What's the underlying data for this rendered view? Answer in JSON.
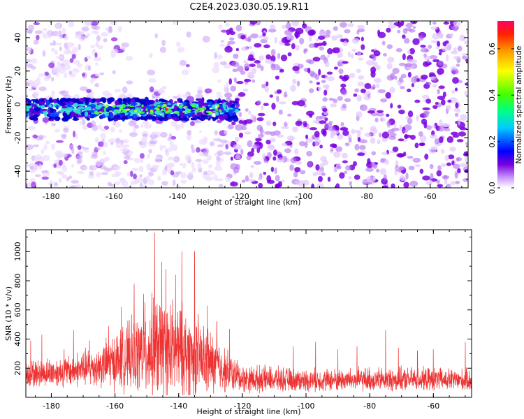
{
  "title": "C2E4.2023.030.05.19.R11",
  "chart_data": [
    {
      "type": "heatmap",
      "xlabel": "Height of straight line (km)",
      "ylabel": "Frequency (Hz)",
      "xlim": [
        -188,
        -48
      ],
      "ylim": [
        -50,
        50
      ],
      "xticks": [
        -180,
        -160,
        -140,
        -120,
        -100,
        -80,
        -60
      ],
      "yticks": [
        -40,
        -20,
        0,
        20,
        40
      ],
      "colorbar": {
        "label": "Normalized spectral amplitude",
        "range": [
          0,
          0.72
        ],
        "ticks": [
          0.0,
          0.2,
          0.4,
          0.6
        ]
      },
      "features": {
        "band_center_hz": -3,
        "band_halfwidth_hz": 6,
        "band_x_range": [
          -188,
          -121
        ],
        "band_peak_amplitude": 0.65,
        "noise_change_x": -124
      }
    },
    {
      "type": "line",
      "xlabel": "Height of straight line (km)",
      "ylabel": "SNR (10 * v/v)",
      "xlim": [
        -188,
        -48
      ],
      "ylim": [
        0,
        1150
      ],
      "xticks": [
        -180,
        -160,
        -140,
        -120,
        -100,
        -80,
        -60
      ],
      "yticks": [
        200,
        400,
        600,
        800,
        1000
      ],
      "series": [
        {
          "color": "#ee3333",
          "envelope": [
            {
              "x": -188,
              "base": 150,
              "spread": 140
            },
            {
              "x": -175,
              "base": 170,
              "spread": 170
            },
            {
              "x": -165,
              "base": 200,
              "spread": 230
            },
            {
              "x": -155,
              "base": 260,
              "spread": 380
            },
            {
              "x": -148,
              "base": 300,
              "spread": 560
            },
            {
              "x": -140,
              "base": 290,
              "spread": 520
            },
            {
              "x": -133,
              "base": 240,
              "spread": 420
            },
            {
              "x": -126,
              "base": 180,
              "spread": 250
            },
            {
              "x": -120,
              "base": 120,
              "spread": 150
            },
            {
              "x": -100,
              "base": 110,
              "spread": 120
            },
            {
              "x": -80,
              "base": 115,
              "spread": 130
            },
            {
              "x": -60,
              "base": 115,
              "spread": 125
            },
            {
              "x": -48,
              "base": 110,
              "spread": 120
            }
          ],
          "peaks": [
            {
              "x": -186.5,
              "y": 390
            },
            {
              "x": -183,
              "y": 430
            },
            {
              "x": -176,
              "y": 330
            },
            {
              "x": -173,
              "y": 460
            },
            {
              "x": -168,
              "y": 390
            },
            {
              "x": -162,
              "y": 490
            },
            {
              "x": -158,
              "y": 620
            },
            {
              "x": -154,
              "y": 780
            },
            {
              "x": -151,
              "y": 710
            },
            {
              "x": -147.5,
              "y": 1130
            },
            {
              "x": -145.3,
              "y": 930
            },
            {
              "x": -144,
              "y": 880
            },
            {
              "x": -141,
              "y": 840
            },
            {
              "x": -139,
              "y": 1000
            },
            {
              "x": -135,
              "y": 1000
            },
            {
              "x": -131,
              "y": 630
            },
            {
              "x": -128,
              "y": 520
            },
            {
              "x": -124,
              "y": 470
            },
            {
              "x": -104,
              "y": 350
            },
            {
              "x": -97,
              "y": 380
            },
            {
              "x": -90,
              "y": 330
            },
            {
              "x": -84,
              "y": 350
            },
            {
              "x": -75,
              "y": 460
            },
            {
              "x": -71,
              "y": 340
            },
            {
              "x": -65,
              "y": 320
            },
            {
              "x": -60,
              "y": 330
            },
            {
              "x": -50,
              "y": 380
            }
          ]
        }
      ]
    }
  ]
}
